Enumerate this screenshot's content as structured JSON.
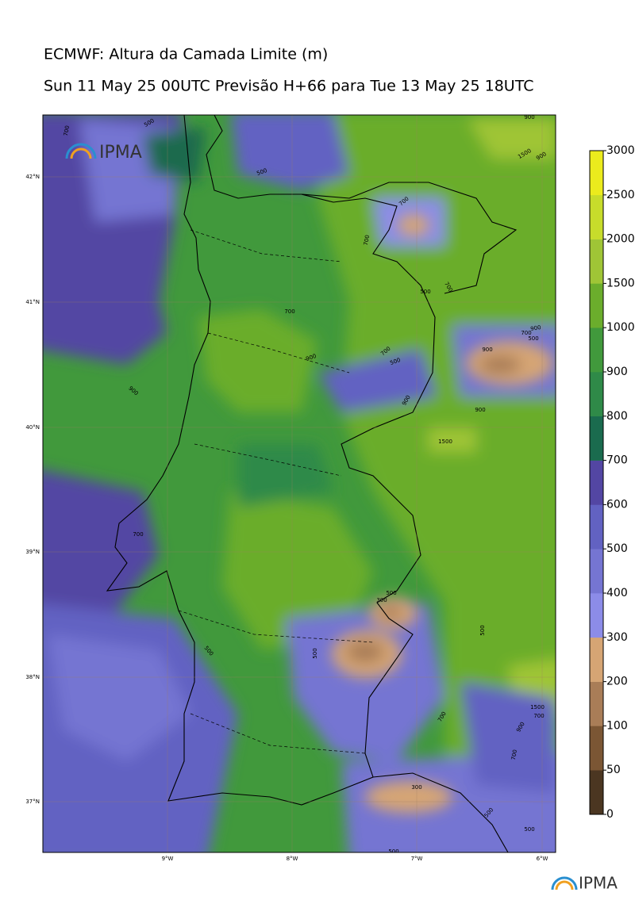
{
  "title": "ECMWF: Altura da Camada Limite (m)",
  "subtitle": "Sun 11 May 25 00UTC Previsão H+66 para Tue 13 May 25 18UTC",
  "logo": "IPMA",
  "map": {
    "lat_labels": [
      "42°N",
      "41°N",
      "40°N",
      "39°N",
      "38°N",
      "37°N"
    ],
    "lon_labels": [
      "9°W",
      "8°W",
      "7°W",
      "6°W"
    ],
    "contour_labels": [
      "700",
      "500",
      "500",
      "700",
      "700",
      "500",
      "700",
      "700",
      "700",
      "500",
      "900",
      "700",
      "500",
      "900",
      "900",
      "900",
      "900",
      "900",
      "1500",
      "700",
      "500",
      "300",
      "500",
      "500",
      "500",
      "300",
      "700",
      "1500",
      "700",
      "900",
      "700",
      "500",
      "500",
      "500",
      "1500",
      "900",
      "900"
    ]
  },
  "colorbar": {
    "levels": [
      0,
      50,
      100,
      200,
      300,
      400,
      500,
      600,
      700,
      800,
      900,
      1000,
      1500,
      2000,
      2500,
      3000
    ],
    "colors": [
      "#4b3621",
      "#7b5634",
      "#a97d57",
      "#d6a574",
      "#8c8ce8",
      "#7575d2",
      "#6262c2",
      "#5346a3",
      "#1a6b4e",
      "#2f8a48",
      "#41993c",
      "#6bad2c",
      "#9fc536",
      "#c7dc2b",
      "#ebeb1d"
    ]
  }
}
